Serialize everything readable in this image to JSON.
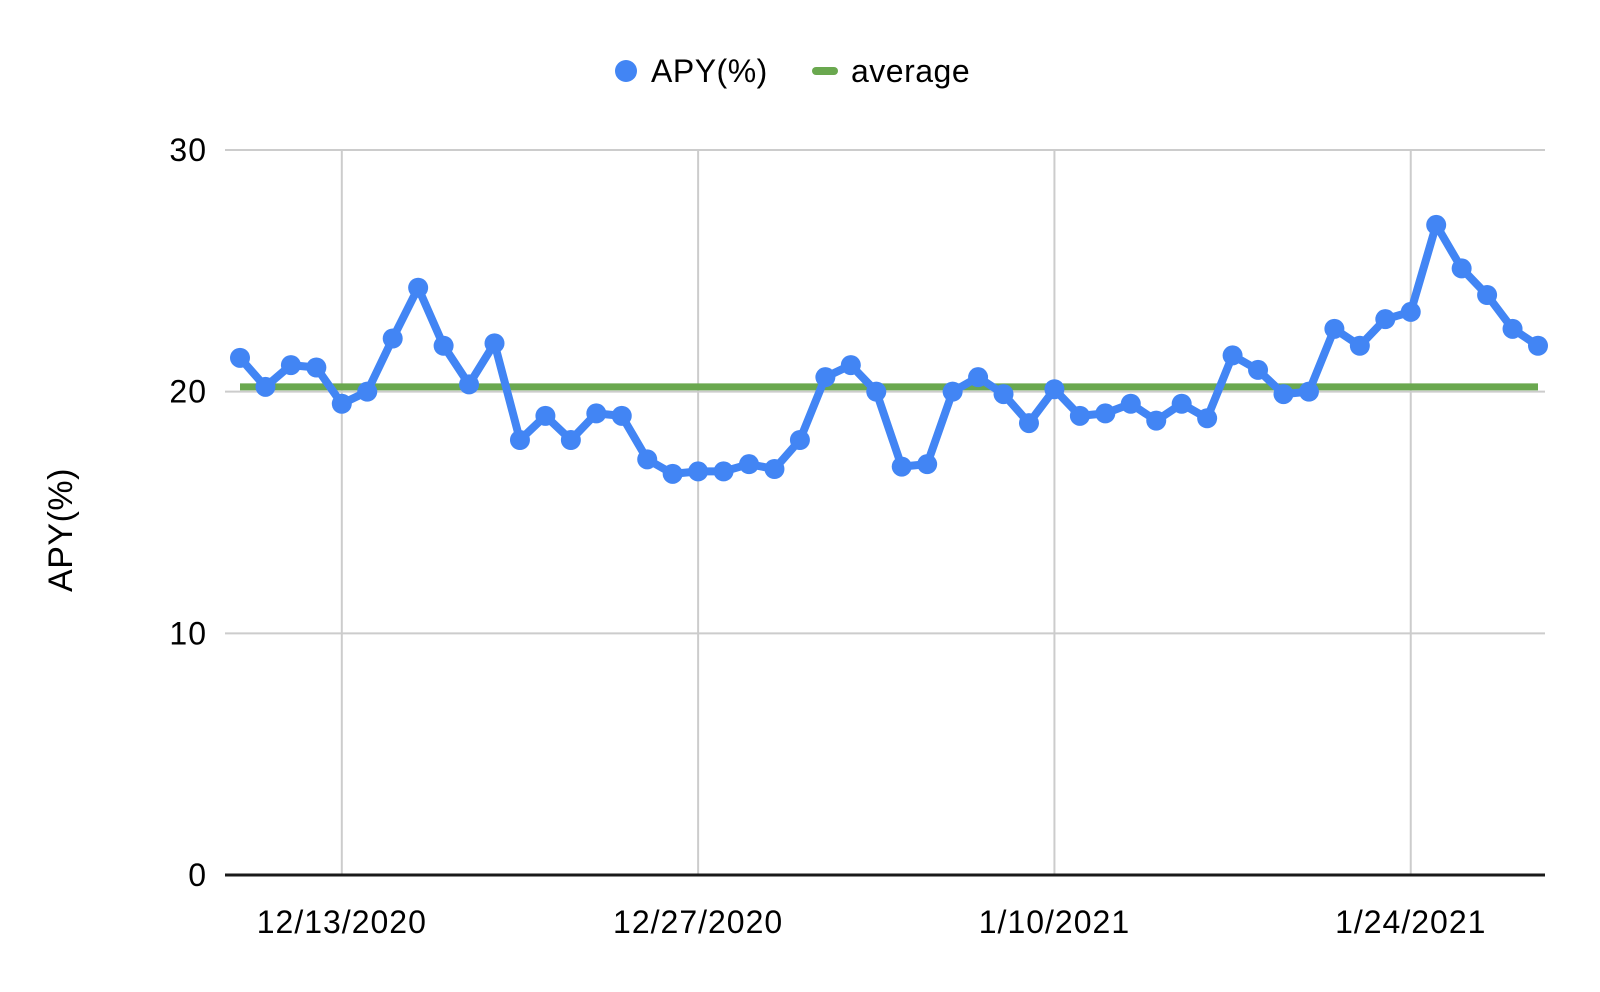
{
  "chart_data": {
    "type": "line",
    "title": "",
    "xlabel": "",
    "ylabel": "APY(%)",
    "ylim": [
      0,
      30
    ],
    "yticks": [
      0,
      10,
      20,
      30
    ],
    "xticks": [
      "12/13/2020",
      "12/27/2020",
      "1/10/2021",
      "1/24/2021"
    ],
    "legend_position": "top",
    "grid": true,
    "background_color": "#ffffff",
    "gridline_color": "#cccccc",
    "axis_color": "#1a1a1a",
    "text_color": "#000000",
    "x": [
      "12/9/2020",
      "12/10/2020",
      "12/11/2020",
      "12/12/2020",
      "12/13/2020",
      "12/14/2020",
      "12/15/2020",
      "12/16/2020",
      "12/17/2020",
      "12/18/2020",
      "12/19/2020",
      "12/20/2020",
      "12/21/2020",
      "12/22/2020",
      "12/23/2020",
      "12/24/2020",
      "12/25/2020",
      "12/26/2020",
      "12/27/2020",
      "12/28/2020",
      "12/29/2020",
      "12/30/2020",
      "12/31/2020",
      "1/1/2021",
      "1/2/2021",
      "1/3/2021",
      "1/4/2021",
      "1/5/2021",
      "1/6/2021",
      "1/7/2021",
      "1/8/2021",
      "1/9/2021",
      "1/10/2021",
      "1/11/2021",
      "1/12/2021",
      "1/13/2021",
      "1/14/2021",
      "1/15/2021",
      "1/16/2021",
      "1/17/2021",
      "1/18/2021",
      "1/19/2021",
      "1/20/2021",
      "1/21/2021",
      "1/22/2021",
      "1/23/2021",
      "1/24/2021",
      "1/25/2021",
      "1/26/2021",
      "1/27/2021",
      "1/28/2021",
      "1/29/2021"
    ],
    "series": [
      {
        "name": "APY(%)",
        "color": "#4285f4",
        "marker": "circle",
        "values": [
          21.4,
          20.2,
          21.1,
          21.0,
          19.5,
          20.0,
          22.2,
          24.3,
          21.9,
          20.3,
          22.0,
          18.0,
          19.0,
          18.0,
          19.1,
          19.0,
          17.2,
          16.6,
          16.7,
          16.7,
          17.0,
          16.8,
          18.0,
          20.6,
          21.1,
          20.0,
          16.9,
          17.0,
          20.0,
          20.6,
          19.9,
          18.7,
          20.1,
          19.0,
          19.1,
          19.5,
          18.8,
          19.5,
          18.9,
          21.5,
          20.9,
          19.9,
          20.0,
          22.6,
          21.9,
          23.0,
          23.3,
          26.9,
          25.1,
          24.0,
          22.6,
          21.9
        ]
      },
      {
        "name": "average",
        "color": "#6aa84f",
        "marker": "dash",
        "style": "constant-line",
        "value": 20.2
      }
    ]
  }
}
